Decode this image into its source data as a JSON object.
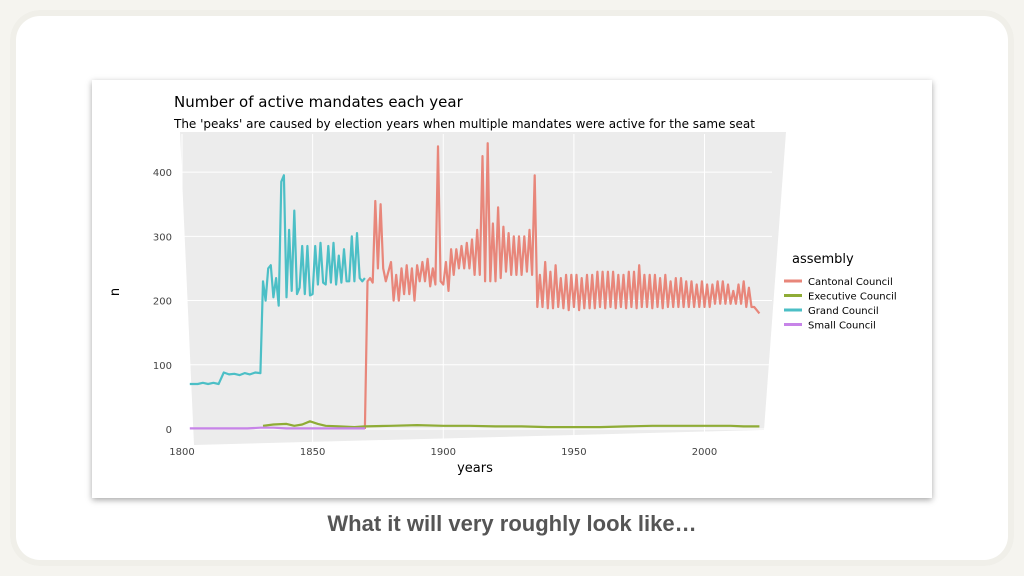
{
  "slide": {
    "caption": "What it will very roughly look like…"
  },
  "chart_data": {
    "type": "line",
    "title": "Number of active mandates each year",
    "subtitle": "The 'peaks' are caused by election years when multiple mandates were active for the same seat",
    "xlabel": "years",
    "ylabel": "n",
    "xlim": [
      1800,
      2022
    ],
    "ylim": [
      0,
      450
    ],
    "x_ticks": [
      "1800",
      "1850",
      "1900",
      "1950",
      "2000"
    ],
    "y_ticks": [
      "0",
      "100",
      "200",
      "300",
      "400"
    ],
    "grid": true,
    "legend": {
      "title": "assembly",
      "position": "right"
    },
    "series": [
      {
        "name": "Cantonal Council",
        "color": "#e8867a",
        "points": [
          [
            1870,
            0
          ],
          [
            1871,
            230
          ],
          [
            1872,
            235
          ],
          [
            1873,
            228
          ],
          [
            1874,
            355
          ],
          [
            1875,
            250
          ],
          [
            1876,
            350
          ],
          [
            1877,
            250
          ],
          [
            1878,
            230
          ],
          [
            1879,
            245
          ],
          [
            1880,
            260
          ],
          [
            1881,
            200
          ],
          [
            1882,
            240
          ],
          [
            1883,
            200
          ],
          [
            1884,
            250
          ],
          [
            1885,
            210
          ],
          [
            1886,
            255
          ],
          [
            1887,
            210
          ],
          [
            1888,
            250
          ],
          [
            1889,
            200
          ],
          [
            1890,
            255
          ],
          [
            1891,
            230
          ],
          [
            1892,
            260
          ],
          [
            1893,
            230
          ],
          [
            1894,
            265
          ],
          [
            1895,
            222
          ],
          [
            1896,
            250
          ],
          [
            1897,
            225
          ],
          [
            1898,
            440
          ],
          [
            1899,
            230
          ],
          [
            1900,
            225
          ],
          [
            1901,
            260
          ],
          [
            1902,
            215
          ],
          [
            1903,
            280
          ],
          [
            1904,
            240
          ],
          [
            1905,
            280
          ],
          [
            1906,
            250
          ],
          [
            1907,
            285
          ],
          [
            1908,
            250
          ],
          [
            1909,
            290
          ],
          [
            1910,
            250
          ],
          [
            1911,
            295
          ],
          [
            1912,
            240
          ],
          [
            1913,
            310
          ],
          [
            1914,
            240
          ],
          [
            1915,
            425
          ],
          [
            1916,
            230
          ],
          [
            1917,
            445
          ],
          [
            1918,
            230
          ],
          [
            1919,
            320
          ],
          [
            1920,
            230
          ],
          [
            1921,
            345
          ],
          [
            1922,
            235
          ],
          [
            1923,
            315
          ],
          [
            1924,
            245
          ],
          [
            1925,
            305
          ],
          [
            1926,
            240
          ],
          [
            1927,
            300
          ],
          [
            1928,
            240
          ],
          [
            1929,
            300
          ],
          [
            1930,
            240
          ],
          [
            1931,
            300
          ],
          [
            1932,
            245
          ],
          [
            1933,
            310
          ],
          [
            1934,
            240
          ],
          [
            1935,
            395
          ],
          [
            1936,
            190
          ],
          [
            1937,
            240
          ],
          [
            1938,
            190
          ],
          [
            1939,
            260
          ],
          [
            1940,
            188
          ],
          [
            1941,
            245
          ],
          [
            1942,
            188
          ],
          [
            1943,
            255
          ],
          [
            1944,
            190
          ],
          [
            1945,
            235
          ],
          [
            1946,
            188
          ],
          [
            1947,
            240
          ],
          [
            1948,
            185
          ],
          [
            1949,
            240
          ],
          [
            1950,
            190
          ],
          [
            1951,
            240
          ],
          [
            1952,
            185
          ],
          [
            1953,
            235
          ],
          [
            1954,
            188
          ],
          [
            1955,
            240
          ],
          [
            1956,
            188
          ],
          [
            1957,
            240
          ],
          [
            1958,
            188
          ],
          [
            1959,
            245
          ],
          [
            1960,
            190
          ],
          [
            1961,
            245
          ],
          [
            1962,
            188
          ],
          [
            1963,
            245
          ],
          [
            1964,
            190
          ],
          [
            1965,
            245
          ],
          [
            1966,
            188
          ],
          [
            1967,
            240
          ],
          [
            1968,
            190
          ],
          [
            1969,
            240
          ],
          [
            1970,
            188
          ],
          [
            1971,
            245
          ],
          [
            1972,
            190
          ],
          [
            1973,
            245
          ],
          [
            1974,
            188
          ],
          [
            1975,
            255
          ],
          [
            1976,
            190
          ],
          [
            1977,
            240
          ],
          [
            1978,
            190
          ],
          [
            1979,
            240
          ],
          [
            1980,
            188
          ],
          [
            1981,
            240
          ],
          [
            1982,
            190
          ],
          [
            1983,
            235
          ],
          [
            1984,
            188
          ],
          [
            1985,
            240
          ],
          [
            1986,
            190
          ],
          [
            1987,
            230
          ],
          [
            1988,
            190
          ],
          [
            1989,
            235
          ],
          [
            1990,
            190
          ],
          [
            1991,
            235
          ],
          [
            1992,
            190
          ],
          [
            1993,
            230
          ],
          [
            1994,
            190
          ],
          [
            1995,
            230
          ],
          [
            1996,
            190
          ],
          [
            1997,
            225
          ],
          [
            1998,
            190
          ],
          [
            1999,
            230
          ],
          [
            2000,
            190
          ],
          [
            2001,
            225
          ],
          [
            2002,
            190
          ],
          [
            2003,
            225
          ],
          [
            2004,
            195
          ],
          [
            2005,
            230
          ],
          [
            2006,
            195
          ],
          [
            2007,
            230
          ],
          [
            2008,
            195
          ],
          [
            2009,
            225
          ],
          [
            2010,
            195
          ],
          [
            2011,
            215
          ],
          [
            2012,
            195
          ],
          [
            2013,
            225
          ],
          [
            2014,
            195
          ],
          [
            2015,
            230
          ],
          [
            2016,
            190
          ],
          [
            2017,
            220
          ],
          [
            2018,
            190
          ],
          [
            2019,
            190
          ],
          [
            2020,
            185
          ],
          [
            2021,
            180
          ]
        ]
      },
      {
        "name": "Executive Council",
        "color": "#8fac36",
        "points": [
          [
            1831,
            5
          ],
          [
            1835,
            7
          ],
          [
            1840,
            8
          ],
          [
            1843,
            5
          ],
          [
            1846,
            7
          ],
          [
            1849,
            12
          ],
          [
            1852,
            8
          ],
          [
            1855,
            5
          ],
          [
            1860,
            4
          ],
          [
            1866,
            3
          ],
          [
            1870,
            4
          ],
          [
            1880,
            5
          ],
          [
            1890,
            6
          ],
          [
            1900,
            5
          ],
          [
            1910,
            5
          ],
          [
            1920,
            4
          ],
          [
            1930,
            4
          ],
          [
            1940,
            3
          ],
          [
            1950,
            3
          ],
          [
            1960,
            3
          ],
          [
            1970,
            4
          ],
          [
            1980,
            5
          ],
          [
            1990,
            5
          ],
          [
            2000,
            5
          ],
          [
            2010,
            5
          ],
          [
            2015,
            4
          ],
          [
            2021,
            4
          ]
        ]
      },
      {
        "name": "Grand Council",
        "color": "#4cbfc6",
        "points": [
          [
            1803,
            70
          ],
          [
            1806,
            70
          ],
          [
            1808,
            72
          ],
          [
            1810,
            70
          ],
          [
            1812,
            72
          ],
          [
            1814,
            70
          ],
          [
            1816,
            88
          ],
          [
            1818,
            85
          ],
          [
            1820,
            86
          ],
          [
            1822,
            84
          ],
          [
            1824,
            87
          ],
          [
            1826,
            85
          ],
          [
            1828,
            88
          ],
          [
            1830,
            87
          ],
          [
            1831,
            230
          ],
          [
            1832,
            200
          ],
          [
            1833,
            250
          ],
          [
            1834,
            255
          ],
          [
            1835,
            205
          ],
          [
            1836,
            235
          ],
          [
            1837,
            192
          ],
          [
            1838,
            385
          ],
          [
            1839,
            395
          ],
          [
            1840,
            205
          ],
          [
            1841,
            310
          ],
          [
            1842,
            215
          ],
          [
            1843,
            340
          ],
          [
            1844,
            210
          ],
          [
            1845,
            220
          ],
          [
            1846,
            285
          ],
          [
            1847,
            210
          ],
          [
            1848,
            285
          ],
          [
            1849,
            208
          ],
          [
            1850,
            210
          ],
          [
            1851,
            285
          ],
          [
            1852,
            225
          ],
          [
            1853,
            290
          ],
          [
            1854,
            228
          ],
          [
            1855,
            225
          ],
          [
            1856,
            285
          ],
          [
            1857,
            228
          ],
          [
            1858,
            290
          ],
          [
            1859,
            225
          ],
          [
            1860,
            270
          ],
          [
            1861,
            228
          ],
          [
            1862,
            280
          ],
          [
            1863,
            230
          ],
          [
            1864,
            230
          ],
          [
            1865,
            300
          ],
          [
            1866,
            230
          ],
          [
            1867,
            305
          ],
          [
            1868,
            235
          ],
          [
            1869,
            230
          ],
          [
            1870,
            235
          ]
        ]
      },
      {
        "name": "Small Council",
        "color": "#c784e8",
        "points": [
          [
            1803,
            1
          ],
          [
            1810,
            1
          ],
          [
            1820,
            1
          ],
          [
            1825,
            1
          ],
          [
            1830,
            2
          ],
          [
            1835,
            2
          ],
          [
            1840,
            1
          ],
          [
            1845,
            1
          ],
          [
            1850,
            1
          ],
          [
            1855,
            1
          ],
          [
            1860,
            1
          ],
          [
            1865,
            1
          ],
          [
            1870,
            1
          ]
        ]
      }
    ]
  }
}
